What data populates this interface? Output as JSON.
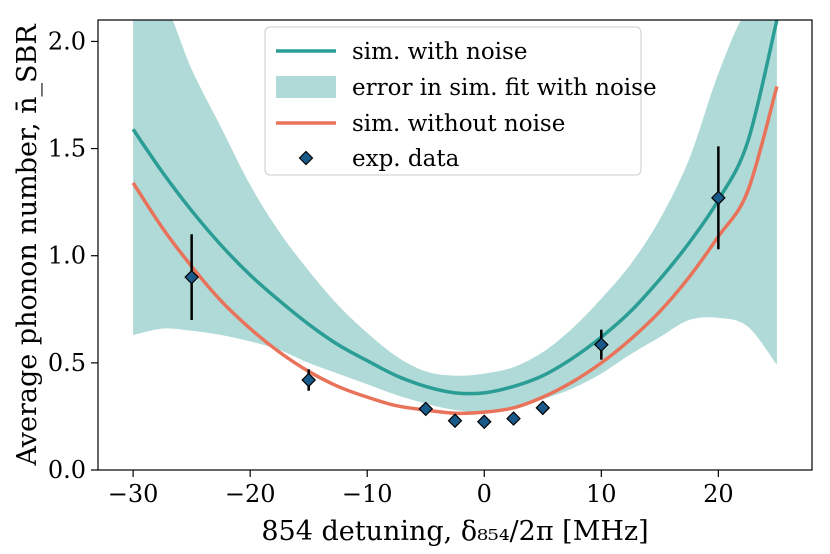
{
  "chart_data": {
    "type": "line",
    "title": "",
    "xlabel": "854 detuning, δ₈₅₄/2π [MHz]",
    "ylabel": "Average phonon number, n̄_SBR",
    "xlim": [
      -33,
      28
    ],
    "ylim": [
      0,
      2.1
    ],
    "xticks": [
      -30,
      -20,
      -10,
      0,
      10,
      20
    ],
    "xtick_labels": [
      "−30",
      "−20",
      "−10",
      "0",
      "10",
      "20"
    ],
    "yticks": [
      0.0,
      0.5,
      1.0,
      1.5,
      2.0
    ],
    "ytick_labels": [
      "0.0",
      "0.5",
      "1.0",
      "1.5",
      "2.0"
    ],
    "legend_position": "top-center",
    "series": [
      {
        "name": "sim. with noise",
        "kind": "line",
        "color": "#2a9d95",
        "x": [
          -30,
          -27.5,
          -25,
          -22.5,
          -20,
          -17.5,
          -15,
          -12.5,
          -10,
          -7.5,
          -5,
          -2.5,
          0,
          2.5,
          5,
          7.5,
          10,
          12.5,
          15,
          17.5,
          20,
          22.5,
          25
        ],
        "y": [
          1.59,
          1.39,
          1.21,
          1.05,
          0.91,
          0.79,
          0.68,
          0.585,
          0.51,
          0.44,
          0.39,
          0.36,
          0.36,
          0.39,
          0.44,
          0.52,
          0.62,
          0.74,
          0.89,
          1.06,
          1.26,
          1.53,
          2.1
        ]
      },
      {
        "name": "error in sim. fit with noise",
        "kind": "band",
        "color": "#b0dad8",
        "x": [
          -30,
          -27.5,
          -25,
          -22.5,
          -20,
          -17.5,
          -15,
          -12.5,
          -10,
          -7.5,
          -5,
          -2.5,
          0,
          2.5,
          5,
          7.5,
          10,
          12.5,
          15,
          17.5,
          20,
          22.5,
          25
        ],
        "lower": [
          0.63,
          0.66,
          0.65,
          0.63,
          0.6,
          0.56,
          0.5,
          0.45,
          0.4,
          0.35,
          0.31,
          0.28,
          0.27,
          0.29,
          0.33,
          0.38,
          0.45,
          0.54,
          0.62,
          0.7,
          0.71,
          0.67,
          0.49
        ],
        "upper": [
          2.28,
          2.2,
          1.87,
          1.6,
          1.33,
          1.11,
          0.93,
          0.77,
          0.64,
          0.53,
          0.46,
          0.44,
          0.45,
          0.48,
          0.55,
          0.66,
          0.8,
          0.96,
          1.17,
          1.45,
          1.85,
          2.15,
          2.2
        ]
      },
      {
        "name": "sim. without noise",
        "kind": "line",
        "color": "#e8735a",
        "x": [
          -30,
          -27.5,
          -25,
          -22.5,
          -20,
          -17.5,
          -15,
          -12.5,
          -10,
          -7.5,
          -5,
          -2.5,
          0,
          2.5,
          5,
          7.5,
          10,
          12.5,
          15,
          17.5,
          20,
          22.5,
          25
        ],
        "y": [
          1.34,
          1.13,
          0.95,
          0.79,
          0.66,
          0.55,
          0.46,
          0.39,
          0.34,
          0.3,
          0.28,
          0.265,
          0.27,
          0.29,
          0.34,
          0.41,
          0.5,
          0.61,
          0.74,
          0.9,
          1.09,
          1.3,
          1.79
        ]
      },
      {
        "name": "exp. data",
        "kind": "scatter",
        "color": "#1a5a8a",
        "x": [
          -25,
          -15,
          -5,
          -2.5,
          0,
          2.5,
          5,
          10,
          20
        ],
        "y": [
          0.9,
          0.42,
          0.285,
          0.23,
          0.225,
          0.24,
          0.29,
          0.585,
          1.27
        ],
        "yerr_lower": [
          0.2,
          0.05,
          0.02,
          0.02,
          0.02,
          0.025,
          0.03,
          0.07,
          0.24
        ],
        "yerr_upper": [
          0.2,
          0.05,
          0.02,
          0.02,
          0.02,
          0.025,
          0.03,
          0.07,
          0.24
        ]
      }
    ]
  }
}
